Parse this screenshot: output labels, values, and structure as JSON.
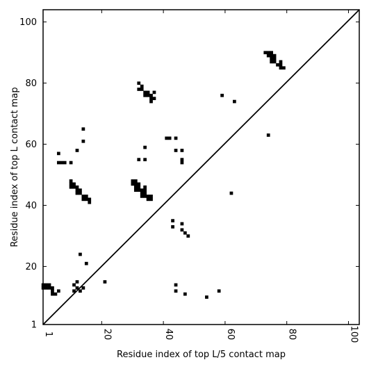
{
  "chart_data": {
    "type": "heatmap",
    "title": "",
    "xlabel": "Residue index of top L/5 contact map",
    "ylabel": "Residue index of top L contact map",
    "xlim": [
      1,
      103.5
    ],
    "ylim": [
      1,
      104
    ],
    "xticks": [
      1,
      20,
      40,
      60,
      80,
      100
    ],
    "yticks": [
      1,
      20,
      40,
      60,
      80,
      100
    ],
    "grid": false,
    "cell_color": "#000000",
    "diagonal": true,
    "upper_triangle_contacts": [
      [
        1,
        14
      ],
      [
        1,
        13
      ],
      [
        2,
        14
      ],
      [
        2,
        13
      ],
      [
        3,
        14
      ],
      [
        3,
        13
      ],
      [
        4,
        13
      ],
      [
        4,
        12
      ],
      [
        4,
        11
      ],
      [
        5,
        11
      ],
      [
        6,
        12
      ],
      [
        6,
        57
      ],
      [
        6,
        54
      ],
      [
        7,
        54
      ],
      [
        8,
        54
      ],
      [
        10,
        54
      ],
      [
        10,
        48
      ],
      [
        10,
        47
      ],
      [
        10,
        46
      ],
      [
        11,
        47
      ],
      [
        11,
        46
      ],
      [
        12,
        46
      ],
      [
        12,
        45
      ],
      [
        12,
        44
      ],
      [
        12,
        58
      ],
      [
        13,
        45
      ],
      [
        13,
        44
      ],
      [
        13,
        24
      ],
      [
        14,
        43
      ],
      [
        14,
        42
      ],
      [
        14,
        61
      ],
      [
        14,
        65
      ],
      [
        15,
        43
      ],
      [
        15,
        42
      ],
      [
        15,
        21
      ],
      [
        16,
        42
      ],
      [
        16,
        41
      ],
      [
        21,
        15
      ],
      [
        30,
        48
      ],
      [
        30,
        47
      ],
      [
        31,
        48
      ],
      [
        31,
        47
      ],
      [
        31,
        46
      ],
      [
        31,
        45
      ],
      [
        32,
        47
      ],
      [
        32,
        46
      ],
      [
        32,
        45
      ],
      [
        32,
        55
      ],
      [
        32,
        80
      ],
      [
        32,
        78
      ],
      [
        33,
        79
      ],
      [
        33,
        78
      ],
      [
        33,
        45
      ],
      [
        33,
        44
      ],
      [
        33,
        43
      ],
      [
        34,
        46
      ],
      [
        34,
        45
      ],
      [
        34,
        44
      ],
      [
        34,
        43
      ],
      [
        34,
        59
      ],
      [
        34,
        55
      ],
      [
        34,
        77
      ],
      [
        34,
        76
      ],
      [
        35,
        77
      ],
      [
        35,
        76
      ],
      [
        35,
        43
      ],
      [
        35,
        42
      ],
      [
        36,
        43
      ],
      [
        36,
        42
      ],
      [
        36,
        76
      ],
      [
        36,
        75
      ],
      [
        36,
        74
      ],
      [
        37,
        77
      ],
      [
        37,
        75
      ],
      [
        41,
        62
      ],
      [
        42,
        62
      ],
      [
        44,
        62
      ],
      [
        44,
        58
      ],
      [
        46,
        58
      ],
      [
        46,
        55
      ],
      [
        46,
        54
      ],
      [
        59,
        76
      ],
      [
        63,
        74
      ],
      [
        73,
        90
      ],
      [
        74,
        90
      ],
      [
        74,
        89
      ],
      [
        75,
        90
      ],
      [
        75,
        89
      ],
      [
        75,
        88
      ],
      [
        75,
        87
      ],
      [
        76,
        89
      ],
      [
        76,
        88
      ],
      [
        76,
        87
      ],
      [
        77,
        86
      ],
      [
        78,
        87
      ],
      [
        78,
        86
      ],
      [
        78,
        85
      ],
      [
        79,
        85
      ],
      [
        74,
        63
      ],
      [
        62,
        44
      ]
    ],
    "lower_triangle_contacts": [
      [
        11,
        14
      ],
      [
        11,
        12
      ],
      [
        12,
        15
      ],
      [
        12,
        13
      ],
      [
        13,
        12
      ],
      [
        14,
        13
      ],
      [
        43,
        35
      ],
      [
        43,
        33
      ],
      [
        44,
        14
      ],
      [
        44,
        12
      ],
      [
        46,
        34
      ],
      [
        46,
        32
      ],
      [
        47,
        31
      ],
      [
        47,
        11
      ],
      [
        48,
        30
      ],
      [
        54,
        10
      ],
      [
        58,
        12
      ]
    ]
  }
}
